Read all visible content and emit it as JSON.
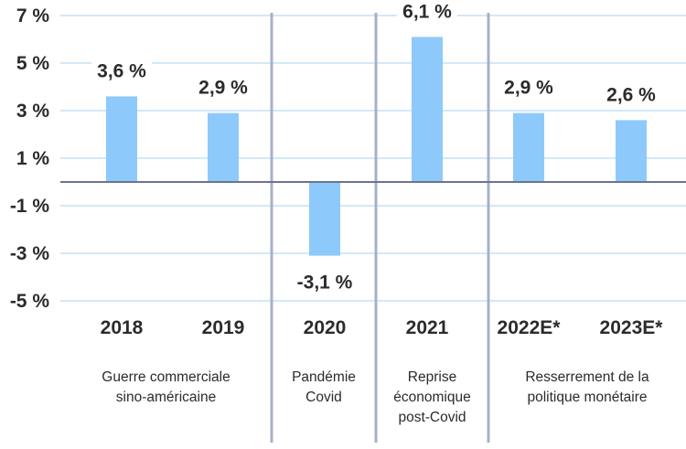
{
  "chart_data": {
    "type": "bar",
    "categories": [
      "2018",
      "2019",
      "2020",
      "2021",
      "2022E*",
      "2023E*"
    ],
    "values": [
      3.6,
      2.9,
      -3.1,
      6.1,
      2.9,
      2.6
    ],
    "data_labels": [
      "3,6 %",
      "2,9 %",
      "-3,1 %",
      "6,1 %",
      "2,9 %",
      "2,6 %"
    ],
    "y_ticks": [
      {
        "value": 7,
        "label": "7 %"
      },
      {
        "value": 5,
        "label": "5 %"
      },
      {
        "value": 3,
        "label": "3 %"
      },
      {
        "value": 1,
        "label": "1 %"
      },
      {
        "value": -1,
        "label": "-1 %"
      },
      {
        "value": -3,
        "label": "-3 %"
      },
      {
        "value": -5,
        "label": "-5 %"
      }
    ],
    "ylim": [
      -5,
      7
    ],
    "grid": true,
    "periods": [
      {
        "label": "Guerre commerciale\nsino-américaine",
        "categories": [
          "2018",
          "2019"
        ]
      },
      {
        "label": "Pandémie\nCovid",
        "categories": [
          "2020"
        ]
      },
      {
        "label": "Reprise\néconomique\npost-Covid",
        "categories": [
          "2021"
        ]
      },
      {
        "label": "Resserrement de la\npolitique monétaire",
        "categories": [
          "2022E*",
          "2023E*"
        ]
      }
    ],
    "colors": {
      "bar": "#8ec9fb",
      "grid": "#d2e9f9",
      "zero_line": "#6a7590",
      "separator": "#a7b0c8",
      "text": "#2b2b2b"
    }
  }
}
